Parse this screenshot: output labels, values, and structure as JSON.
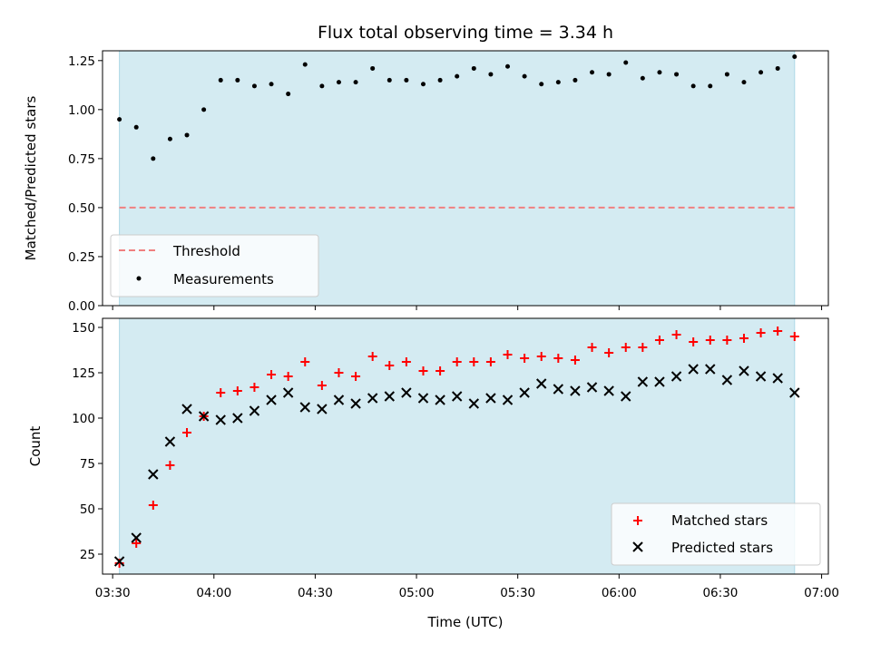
{
  "chart_data": {
    "type": "scatter",
    "title": "Flux total observing time = 3.34 h",
    "xlabel": "Time (UTC)",
    "x_ticks": [
      "03:30",
      "04:00",
      "04:30",
      "05:00",
      "05:30",
      "06:00",
      "06:30",
      "07:00"
    ],
    "x_range": [
      "03:27",
      "07:02"
    ],
    "observing_window": [
      "03:32",
      "06:52"
    ],
    "times": [
      "03:32",
      "03:37",
      "03:42",
      "03:47",
      "03:52",
      "03:57",
      "04:02",
      "04:07",
      "04:12",
      "04:17",
      "04:22",
      "04:27",
      "04:32",
      "04:37",
      "04:42",
      "04:47",
      "04:52",
      "04:57",
      "05:02",
      "05:07",
      "05:12",
      "05:17",
      "05:22",
      "05:27",
      "05:32",
      "05:37",
      "05:42",
      "05:47",
      "05:52",
      "05:57",
      "06:02",
      "06:07",
      "06:12",
      "06:17",
      "06:22",
      "06:27",
      "06:32",
      "06:37",
      "06:42",
      "06:47",
      "06:52"
    ],
    "ratio_panel": {
      "ylabel": "Matched/Predicted stars",
      "ylim": [
        0,
        1.3
      ],
      "y_ticks": [
        "0.00",
        "0.25",
        "0.50",
        "0.75",
        "1.00",
        "1.25"
      ],
      "threshold": 0.5,
      "legend": {
        "threshold": "Threshold",
        "measurements": "Measurements"
      },
      "legend_placement": "lower-left",
      "measurements": [
        0.95,
        0.91,
        0.75,
        0.85,
        0.87,
        1.0,
        1.15,
        1.15,
        1.12,
        1.13,
        1.08,
        1.23,
        1.12,
        1.14,
        1.14,
        1.21,
        1.15,
        1.15,
        1.13,
        1.15,
        1.17,
        1.21,
        1.18,
        1.22,
        1.17,
        1.13,
        1.14,
        1.15,
        1.19,
        1.18,
        1.24,
        1.16,
        1.19,
        1.18,
        1.12,
        1.12,
        1.18,
        1.14,
        1.19,
        1.21,
        1.27
      ]
    },
    "count_panel": {
      "ylabel": "Count",
      "ylim": [
        14,
        155
      ],
      "y_ticks": [
        "25",
        "50",
        "75",
        "100",
        "125",
        "150"
      ],
      "legend_placement": "lower-right",
      "series": [
        {
          "name": "Matched stars",
          "marker": "plus",
          "color": "#ff0000",
          "values": [
            20,
            31,
            52,
            74,
            92,
            101,
            114,
            115,
            117,
            124,
            123,
            131,
            118,
            125,
            123,
            134,
            129,
            131,
            126,
            126,
            131,
            131,
            131,
            135,
            133,
            134,
            133,
            132,
            139,
            136,
            139,
            139,
            143,
            146,
            142,
            143,
            143,
            144,
            147,
            148,
            145
          ]
        },
        {
          "name": "Predicted stars",
          "marker": "x",
          "color": "#000000",
          "values": [
            21,
            34,
            69,
            87,
            105,
            101,
            99,
            100,
            104,
            110,
            114,
            106,
            105,
            110,
            108,
            111,
            112,
            114,
            111,
            110,
            112,
            108,
            111,
            110,
            114,
            119,
            116,
            115,
            117,
            115,
            112,
            120,
            120,
            123,
            127,
            127,
            121,
            126,
            123,
            122,
            114
          ]
        }
      ]
    },
    "colors": {
      "window": "#d4ebf2",
      "window_edge": "#add8e6",
      "threshold": "#f08080",
      "measurement": "#000000"
    }
  }
}
